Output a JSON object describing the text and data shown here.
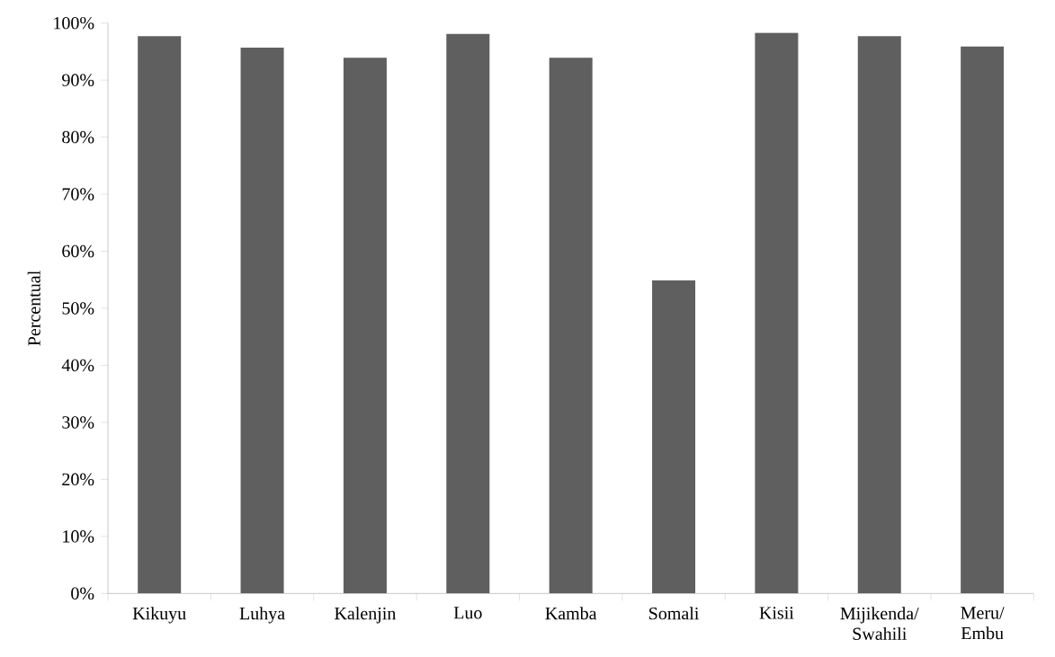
{
  "chart_data": {
    "type": "bar",
    "ylabel": "Percentual",
    "categories": [
      "Kikuyu",
      "Luhya",
      "Kalenjin",
      "Luo",
      "Kamba",
      "Somali",
      "Kisii",
      "Mijikenda/ Swahili",
      "Meru/ Embu"
    ],
    "values": [
      97.7,
      95.7,
      93.9,
      98.1,
      93.9,
      54.9,
      98.3,
      97.7,
      95.9
    ],
    "color": "#5f5f5f",
    "ylim": [
      0,
      100
    ],
    "yticks": [
      {
        "value": 0,
        "label": "0%"
      },
      {
        "value": 10,
        "label": "10%"
      },
      {
        "value": 20,
        "label": "20%"
      },
      {
        "value": 30,
        "label": "30%"
      },
      {
        "value": 40,
        "label": "40%"
      },
      {
        "value": 50,
        "label": "50%"
      },
      {
        "value": 60,
        "label": "60%"
      },
      {
        "value": 70,
        "label": "70%"
      },
      {
        "value": 80,
        "label": "80%"
      },
      {
        "value": 90,
        "label": "90%"
      },
      {
        "value": 100,
        "label": "100%"
      }
    ],
    "grid": false
  }
}
